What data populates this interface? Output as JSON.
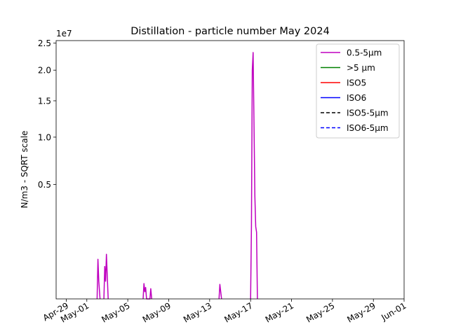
{
  "chart_data": {
    "type": "line",
    "title": "Distillation - particle number May 2024",
    "ylabel": "N/m3 - SQRT scale",
    "xlabel": "",
    "y_scale": "sqrt",
    "y_offset_label": "1e7",
    "ylim": [
      0,
      25500000
    ],
    "xlim": [
      "2024-04-28",
      "2024-06-01"
    ],
    "grid": false,
    "legend_position": "top-right",
    "x_ticks": [
      {
        "date": "2024-04-29",
        "label": "Apr-29"
      },
      {
        "date": "2024-05-01",
        "label": "May-01"
      },
      {
        "date": "2024-05-05",
        "label": "May-05"
      },
      {
        "date": "2024-05-09",
        "label": "May-09"
      },
      {
        "date": "2024-05-13",
        "label": "May-13"
      },
      {
        "date": "2024-05-17",
        "label": "May-17"
      },
      {
        "date": "2024-05-21",
        "label": "May-21"
      },
      {
        "date": "2024-05-25",
        "label": "May-25"
      },
      {
        "date": "2024-05-29",
        "label": "May-29"
      },
      {
        "date": "2024-06-01",
        "label": "Jun-01"
      }
    ],
    "y_ticks": [
      {
        "value": 5000000,
        "label": "0.5"
      },
      {
        "value": 10000000,
        "label": "1.0"
      },
      {
        "value": 15000000,
        "label": "1.5"
      },
      {
        "value": 20000000,
        "label": "2.0"
      },
      {
        "value": 25000000,
        "label": "2.5"
      }
    ],
    "series": [
      {
        "name": "0.5-5µm",
        "color": "#bf00bf",
        "dash": "solid",
        "segments": [
          [
            [
              "2024-05-02T00:00",
              0
            ],
            [
              "2024-05-02T02:00",
              600000
            ],
            [
              "2024-05-02T04:00",
              120000
            ],
            [
              "2024-05-02T07:00",
              0
            ]
          ],
          [
            [
              "2024-05-02T16:00",
              0
            ],
            [
              "2024-05-02T18:00",
              400000
            ],
            [
              "2024-05-02T20:00",
              120000
            ],
            [
              "2024-05-02T22:00",
              760000
            ],
            [
              "2024-05-03T00:00",
              200000
            ],
            [
              "2024-05-03T02:00",
              0
            ]
          ],
          [
            [
              "2024-05-06T12:00",
              0
            ],
            [
              "2024-05-06T14:00",
              90000
            ],
            [
              "2024-05-06T16:00",
              20000
            ],
            [
              "2024-05-06T18:00",
              50000
            ],
            [
              "2024-05-06T20:00",
              0
            ],
            [
              "2024-05-07T04:00",
              0
            ],
            [
              "2024-05-07T06:00",
              40000
            ],
            [
              "2024-05-07T08:00",
              0
            ]
          ],
          [
            [
              "2024-05-13T22:00",
              0
            ],
            [
              "2024-05-14T00:00",
              80000
            ],
            [
              "2024-05-14T02:00",
              20000
            ],
            [
              "2024-05-14T04:00",
              0
            ]
          ],
          [
            [
              "2024-05-17T00:00",
              0
            ],
            [
              "2024-05-17T02:00",
              2000000
            ],
            [
              "2024-05-17T04:00",
              20000000
            ],
            [
              "2024-05-17T06:00",
              23200000
            ],
            [
              "2024-05-17T08:00",
              12000000
            ],
            [
              "2024-05-17T10:00",
              4000000
            ],
            [
              "2024-05-17T12:00",
              2000000
            ],
            [
              "2024-05-17T14:00",
              1700000
            ],
            [
              "2024-05-17T16:00",
              0
            ]
          ]
        ]
      },
      {
        "name": ">5 µm",
        "color": "#008000",
        "dash": "solid",
        "segments": []
      },
      {
        "name": "ISO5",
        "color": "#ff0000",
        "dash": "solid",
        "segments": []
      },
      {
        "name": "ISO6",
        "color": "#0000ff",
        "dash": "solid",
        "segments": []
      },
      {
        "name": "ISO5-5µm",
        "color": "#000000",
        "dash": "dashed",
        "segments": []
      },
      {
        "name": "ISO6-5µm",
        "color": "#0000ff",
        "dash": "dashed",
        "segments": []
      }
    ]
  }
}
